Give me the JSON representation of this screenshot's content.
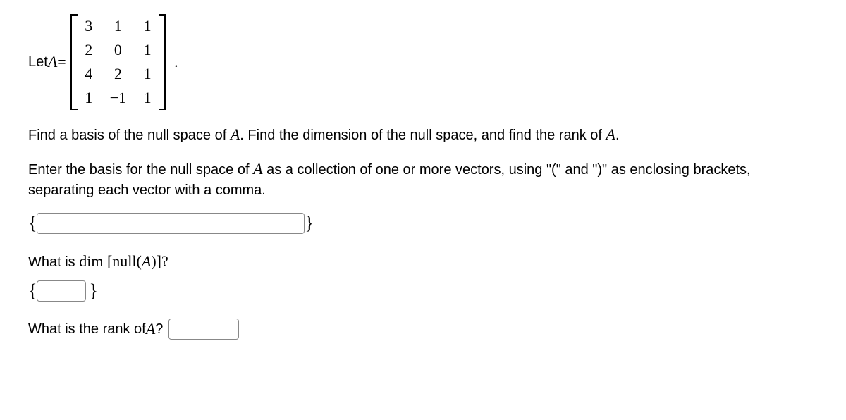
{
  "intro": {
    "let": "Let ",
    "A": "A",
    "equals": " = ",
    "period": "."
  },
  "matrix": {
    "rows": [
      [
        "3",
        "1",
        "1"
      ],
      [
        "2",
        "0",
        "1"
      ],
      [
        "4",
        "2",
        "1"
      ],
      [
        "1",
        "−1",
        "1"
      ]
    ]
  },
  "p1_a": "Find a basis of the null space of ",
  "p1_A": "A",
  "p1_b": ". Find the dimension of the null space, and find the rank of ",
  "p1_A2": "A",
  "p1_c": ".",
  "p2_a": "Enter the basis for the null space of ",
  "p2_A": "A",
  "p2_b": " as a collection of one or more vectors, using \"(\" and \")\" as enclosing brackets, separating each vector with a comma.",
  "braces": {
    "open": "{",
    "close": "}"
  },
  "q2_a": "What is  ",
  "q2_dim": "dim",
  "q2_b": " [null(",
  "q2_A": "A",
  "q2_c": ")]?",
  "q3_a": "What is the rank of ",
  "q3_A": "A",
  "q3_b": "?",
  "inputs": {
    "basis": "",
    "dim": "",
    "rank": ""
  }
}
